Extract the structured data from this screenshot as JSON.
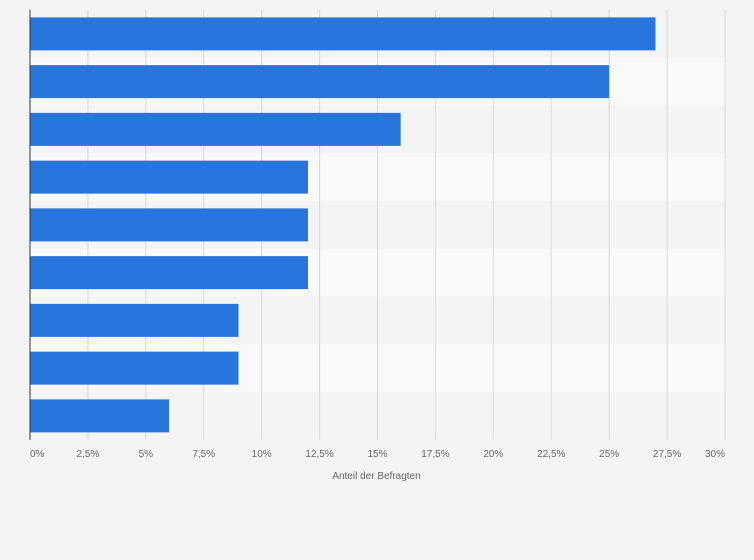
{
  "chart_data": {
    "type": "bar",
    "orientation": "horizontal",
    "categories": [
      "",
      "",
      "",
      "",
      "",
      "",
      "",
      "",
      ""
    ],
    "values": [
      27,
      25,
      16,
      12,
      12,
      12,
      9,
      9,
      6
    ],
    "xlabel": "Anteil der Befragten",
    "ylabel": "",
    "xlim": [
      0,
      30
    ],
    "x_ticks": [
      "0%",
      "2,5%",
      "5%",
      "7,5%",
      "10%",
      "12,5%",
      "15%",
      "17,5%",
      "20%",
      "22,5%",
      "25%",
      "27,5%",
      "30%"
    ],
    "grid": true,
    "legend": "none",
    "bar_color": "#2876dd",
    "band_colors": [
      "#f4f4f4",
      "#f9f9f9"
    ],
    "grid_color": "#d9d9d9",
    "axis_color": "#333333"
  }
}
